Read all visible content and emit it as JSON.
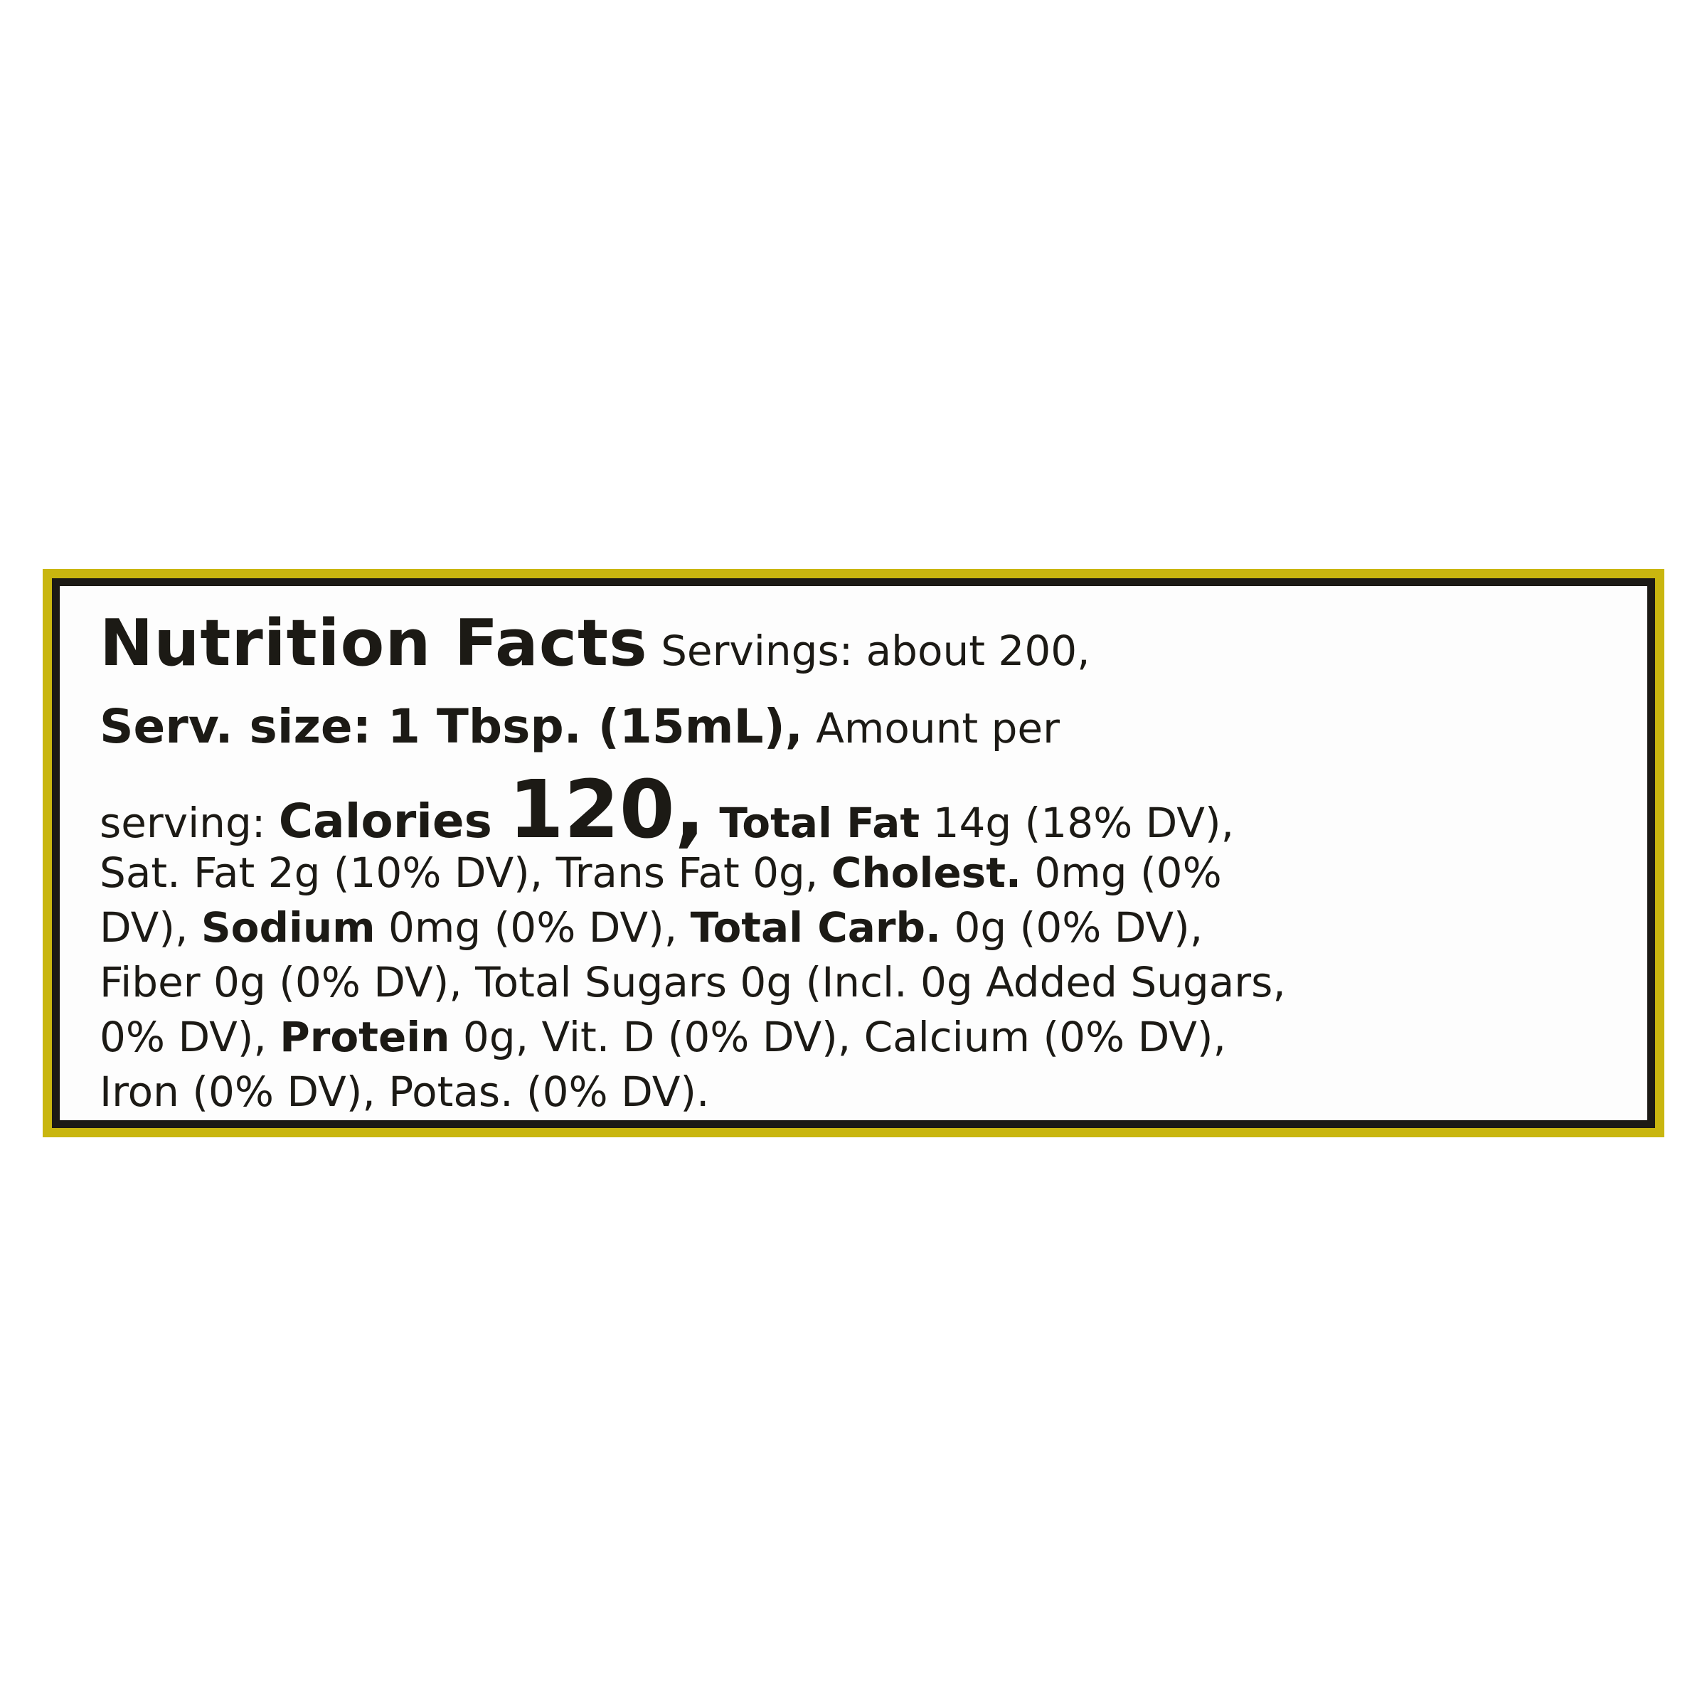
{
  "label": {
    "border_color": "#c9b60f",
    "lines": [
      [
        {
          "t": "Nutrition Facts",
          "s": "title"
        },
        {
          "t": " Servings: about 200,",
          "s": "n"
        }
      ],
      [
        {
          "t": "Serv. size: 1 Tbsp. (15mL),",
          "s": "mid"
        },
        {
          "t": " Amount per",
          "s": "n"
        }
      ],
      [
        {
          "t": "serving: ",
          "s": "n"
        },
        {
          "t": "Calories ",
          "s": "mid"
        },
        {
          "t": "120,",
          "s": "big"
        },
        {
          "t": " Total Fat",
          "s": "b"
        },
        {
          "t": " 14g (18% DV),",
          "s": "n"
        }
      ],
      [
        {
          "t": "Sat. Fat 2g (10% DV), Trans Fat 0g, ",
          "s": "n"
        },
        {
          "t": "Cholest.",
          "s": "b"
        },
        {
          "t": " 0mg (0%",
          "s": "n"
        }
      ],
      [
        {
          "t": "DV), ",
          "s": "n"
        },
        {
          "t": "Sodium",
          "s": "b"
        },
        {
          "t": " 0mg (0% DV), ",
          "s": "n"
        },
        {
          "t": "Total Carb.",
          "s": "b"
        },
        {
          "t": " 0g (0% DV),",
          "s": "n"
        }
      ],
      [
        {
          "t": "Fiber 0g (0% DV), Total Sugars 0g (Incl. 0g Added Sugars,",
          "s": "n"
        }
      ],
      [
        {
          "t": "0% DV), ",
          "s": "n"
        },
        {
          "t": "Protein",
          "s": "b"
        },
        {
          "t": " 0g, Vit. D (0% DV), Calcium (0% DV),",
          "s": "n"
        }
      ],
      [
        {
          "t": "Iron (0% DV), Potas. (0% DV).",
          "s": "n"
        }
      ]
    ]
  }
}
